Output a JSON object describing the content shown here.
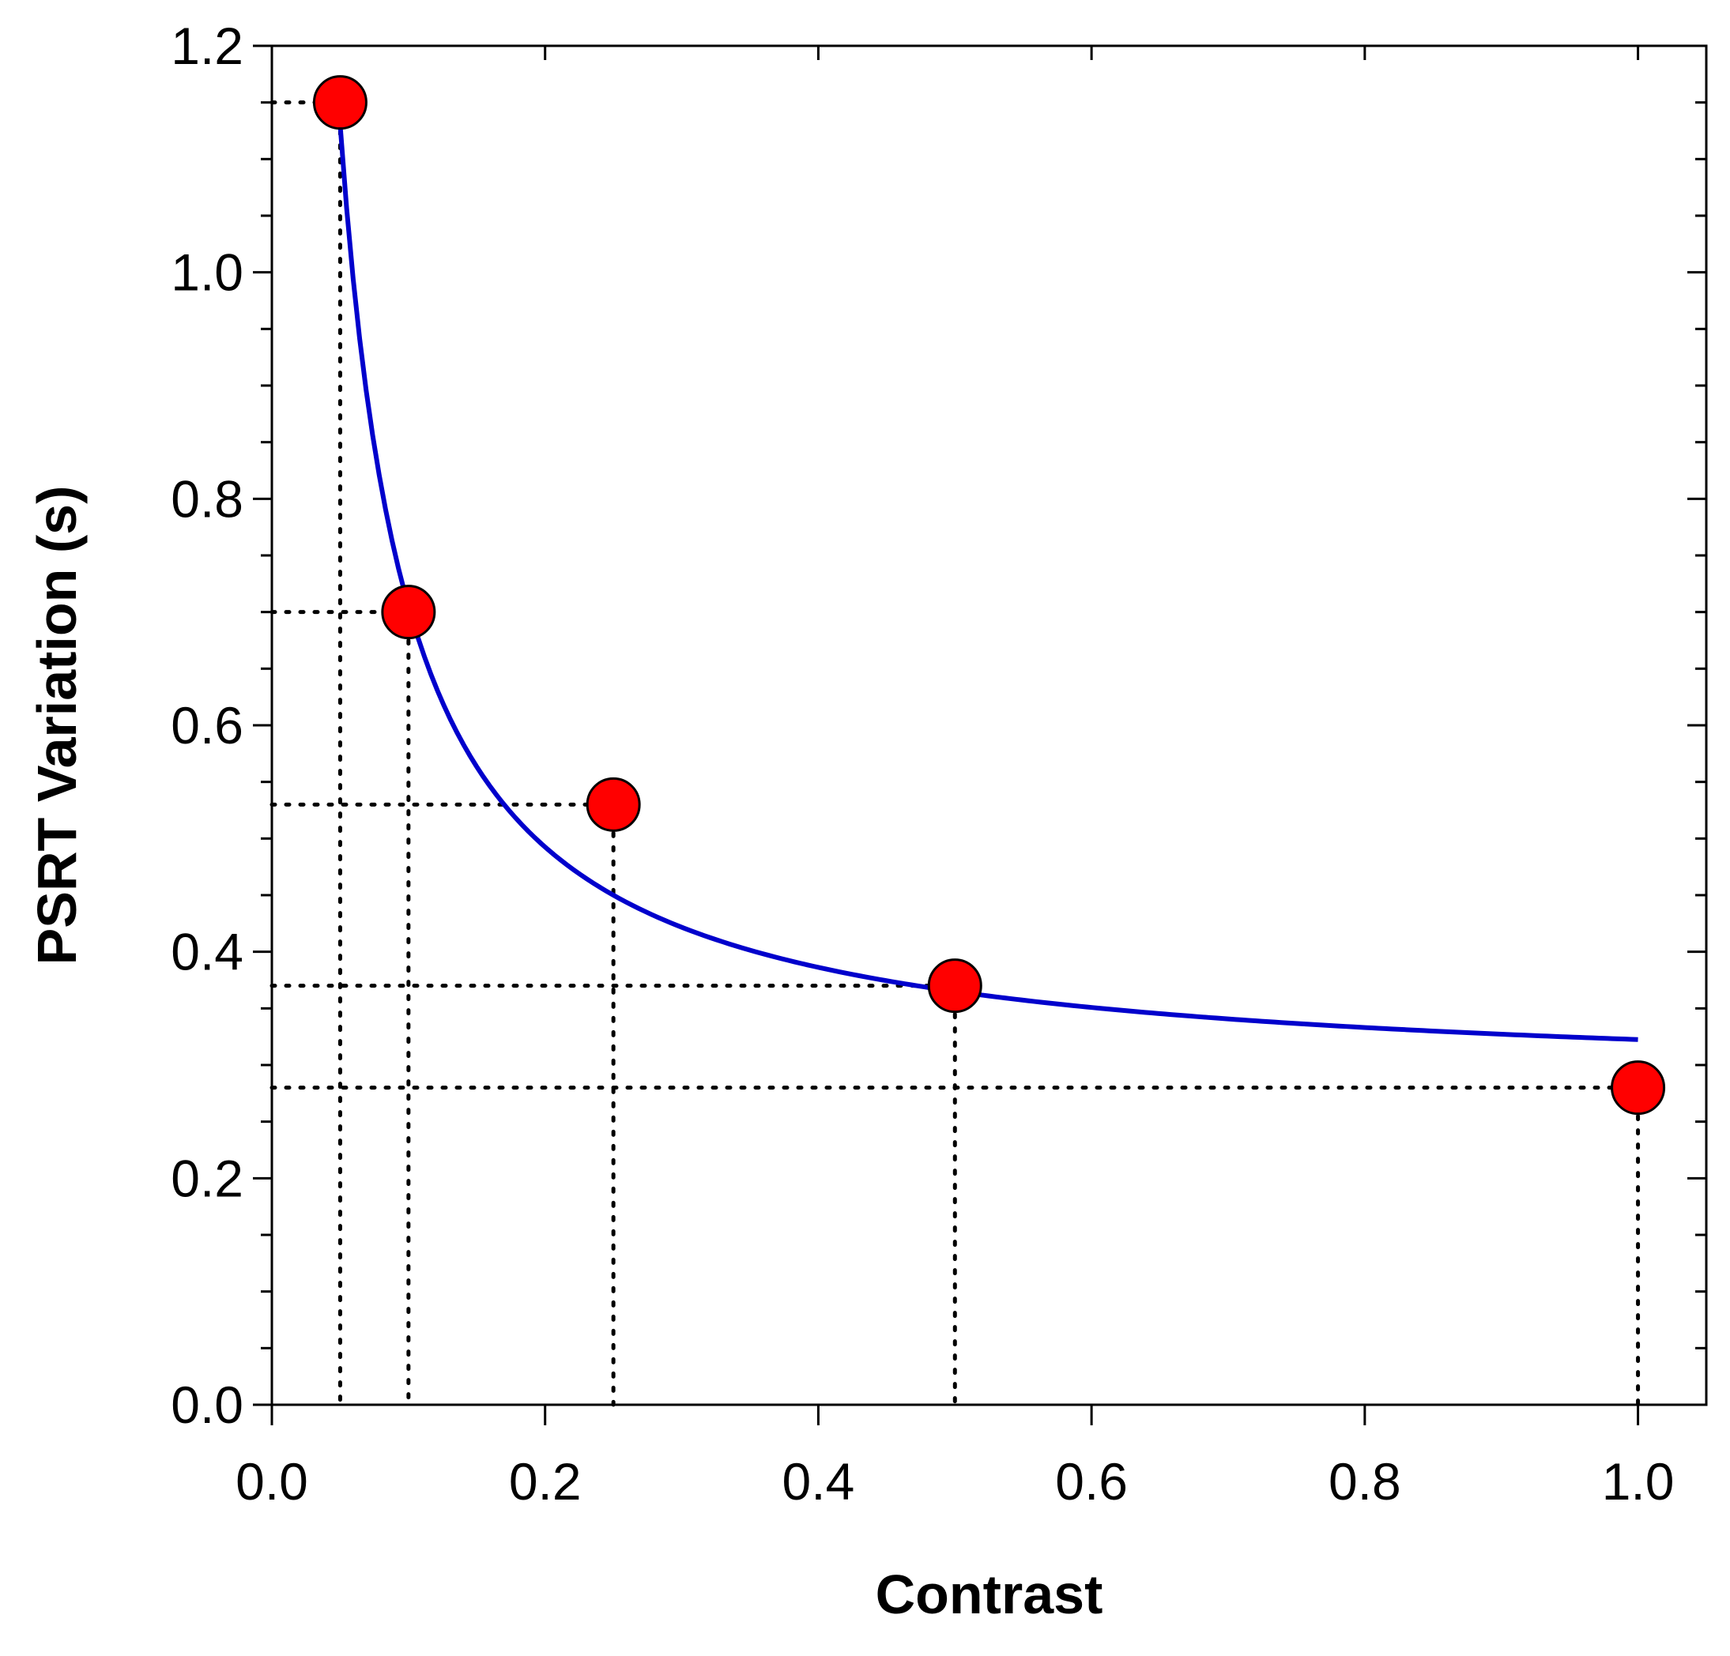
{
  "chart_data": {
    "type": "scatter",
    "title": "",
    "xlabel": "Contrast",
    "ylabel": "PSRT Variation (s)",
    "xlim": [
      0.0,
      1.05
    ],
    "ylim": [
      0.0,
      1.2
    ],
    "x_ticks": [
      "0.0",
      "0.2",
      "0.4",
      "0.6",
      "0.8",
      "1.0"
    ],
    "x_tick_values": [
      0.0,
      0.2,
      0.4,
      0.6,
      0.8,
      1.0
    ],
    "y_ticks": [
      "0.0",
      "0.2",
      "0.4",
      "0.6",
      "0.8",
      "1.0",
      "1.2"
    ],
    "y_tick_values": [
      0.0,
      0.2,
      0.4,
      0.6,
      0.8,
      1.0,
      1.2
    ],
    "points": [
      {
        "x": 0.05,
        "y": 1.15
      },
      {
        "x": 0.1,
        "y": 0.7
      },
      {
        "x": 0.25,
        "y": 0.53
      },
      {
        "x": 0.5,
        "y": 0.37
      },
      {
        "x": 1.0,
        "y": 0.28
      }
    ],
    "fit_curve": {
      "model": "y = a + b / x",
      "a": 0.28,
      "b": 0.0425,
      "x_range": [
        0.05,
        1.0
      ],
      "color": "#0000cc"
    },
    "point_color": "#ff0000",
    "guide_lines": "dotted",
    "grid": false
  }
}
